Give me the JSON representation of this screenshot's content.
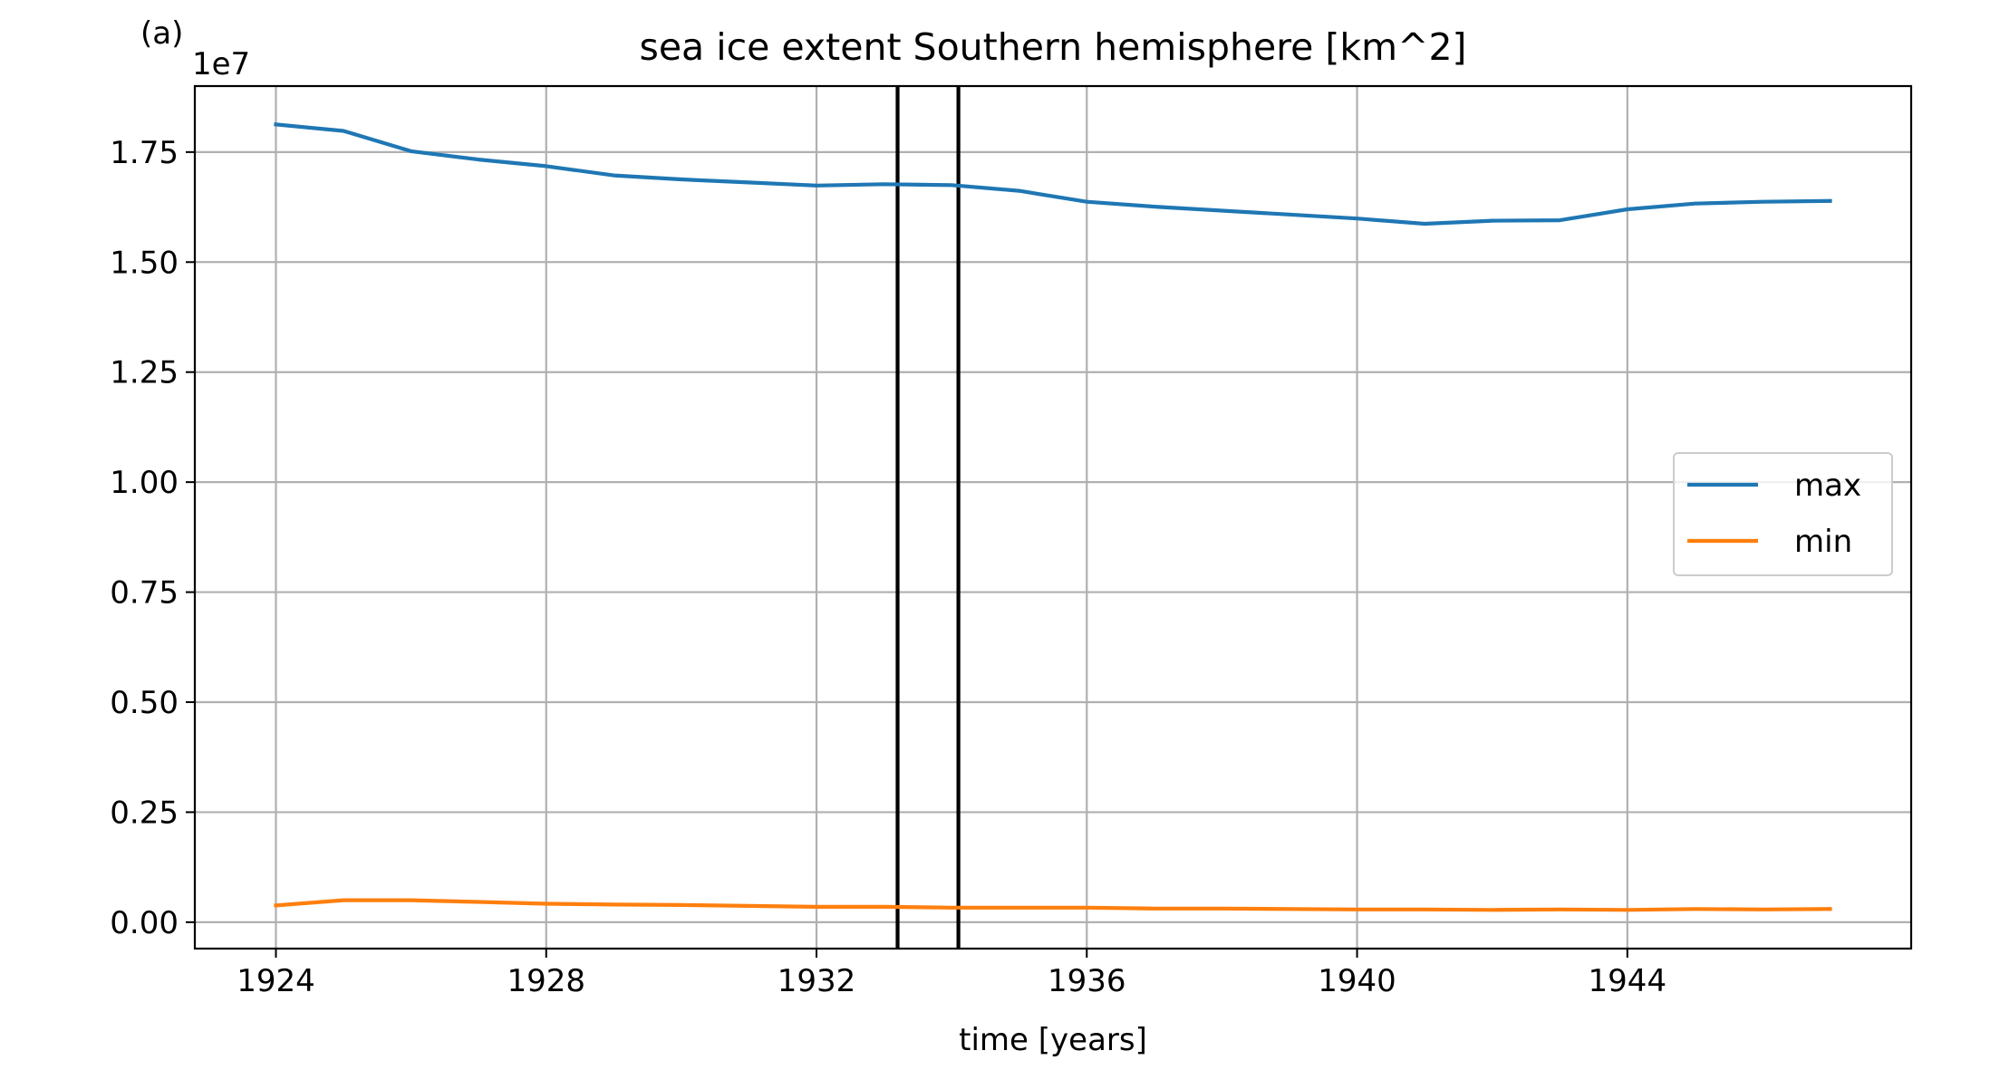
{
  "panel_label": "(a)",
  "chart_data": {
    "type": "line",
    "title": "sea ice extent Southern hemisphere [km^2]",
    "xlabel": "time [years]",
    "ylabel": "",
    "y_offset_label": "1e7",
    "y_scale_factor": 10000000,
    "xlim": [
      1922.8,
      1948.2
    ],
    "ylim": [
      -600000,
      19000000
    ],
    "xticks": [
      1924,
      1928,
      1932,
      1936,
      1940,
      1944
    ],
    "yticks": [
      0,
      2500000,
      5000000,
      7500000,
      10000000,
      12500000,
      15000000,
      17500000
    ],
    "ytick_labels": [
      "0.00",
      "0.25",
      "0.50",
      "0.75",
      "1.00",
      "1.25",
      "1.50",
      "1.75"
    ],
    "grid": true,
    "legend_position": "center-right",
    "x": [
      1924,
      1925,
      1926,
      1927,
      1928,
      1929,
      1930,
      1931,
      1932,
      1933,
      1934,
      1935,
      1936,
      1937,
      1938,
      1939,
      1940,
      1941,
      1942,
      1943,
      1944,
      1945,
      1946,
      1947
    ],
    "series": [
      {
        "name": "max",
        "color": "#1f77b4",
        "values": [
          18130000,
          17980000,
          17520000,
          17330000,
          17180000,
          16970000,
          16880000,
          16810000,
          16740000,
          16770000,
          16750000,
          16620000,
          16370000,
          16260000,
          16170000,
          16080000,
          15990000,
          15870000,
          15940000,
          15950000,
          16200000,
          16330000,
          16370000,
          16390000
        ]
      },
      {
        "name": "min",
        "color": "#ff7f0e",
        "values": [
          380000,
          500000,
          500000,
          460000,
          420000,
          400000,
          390000,
          370000,
          350000,
          350000,
          330000,
          330000,
          330000,
          310000,
          310000,
          300000,
          290000,
          290000,
          280000,
          290000,
          280000,
          300000,
          290000,
          300000
        ]
      }
    ],
    "vlines": [
      {
        "x": 1933.2,
        "color": "#000000"
      },
      {
        "x": 1934.1,
        "color": "#000000"
      }
    ]
  }
}
